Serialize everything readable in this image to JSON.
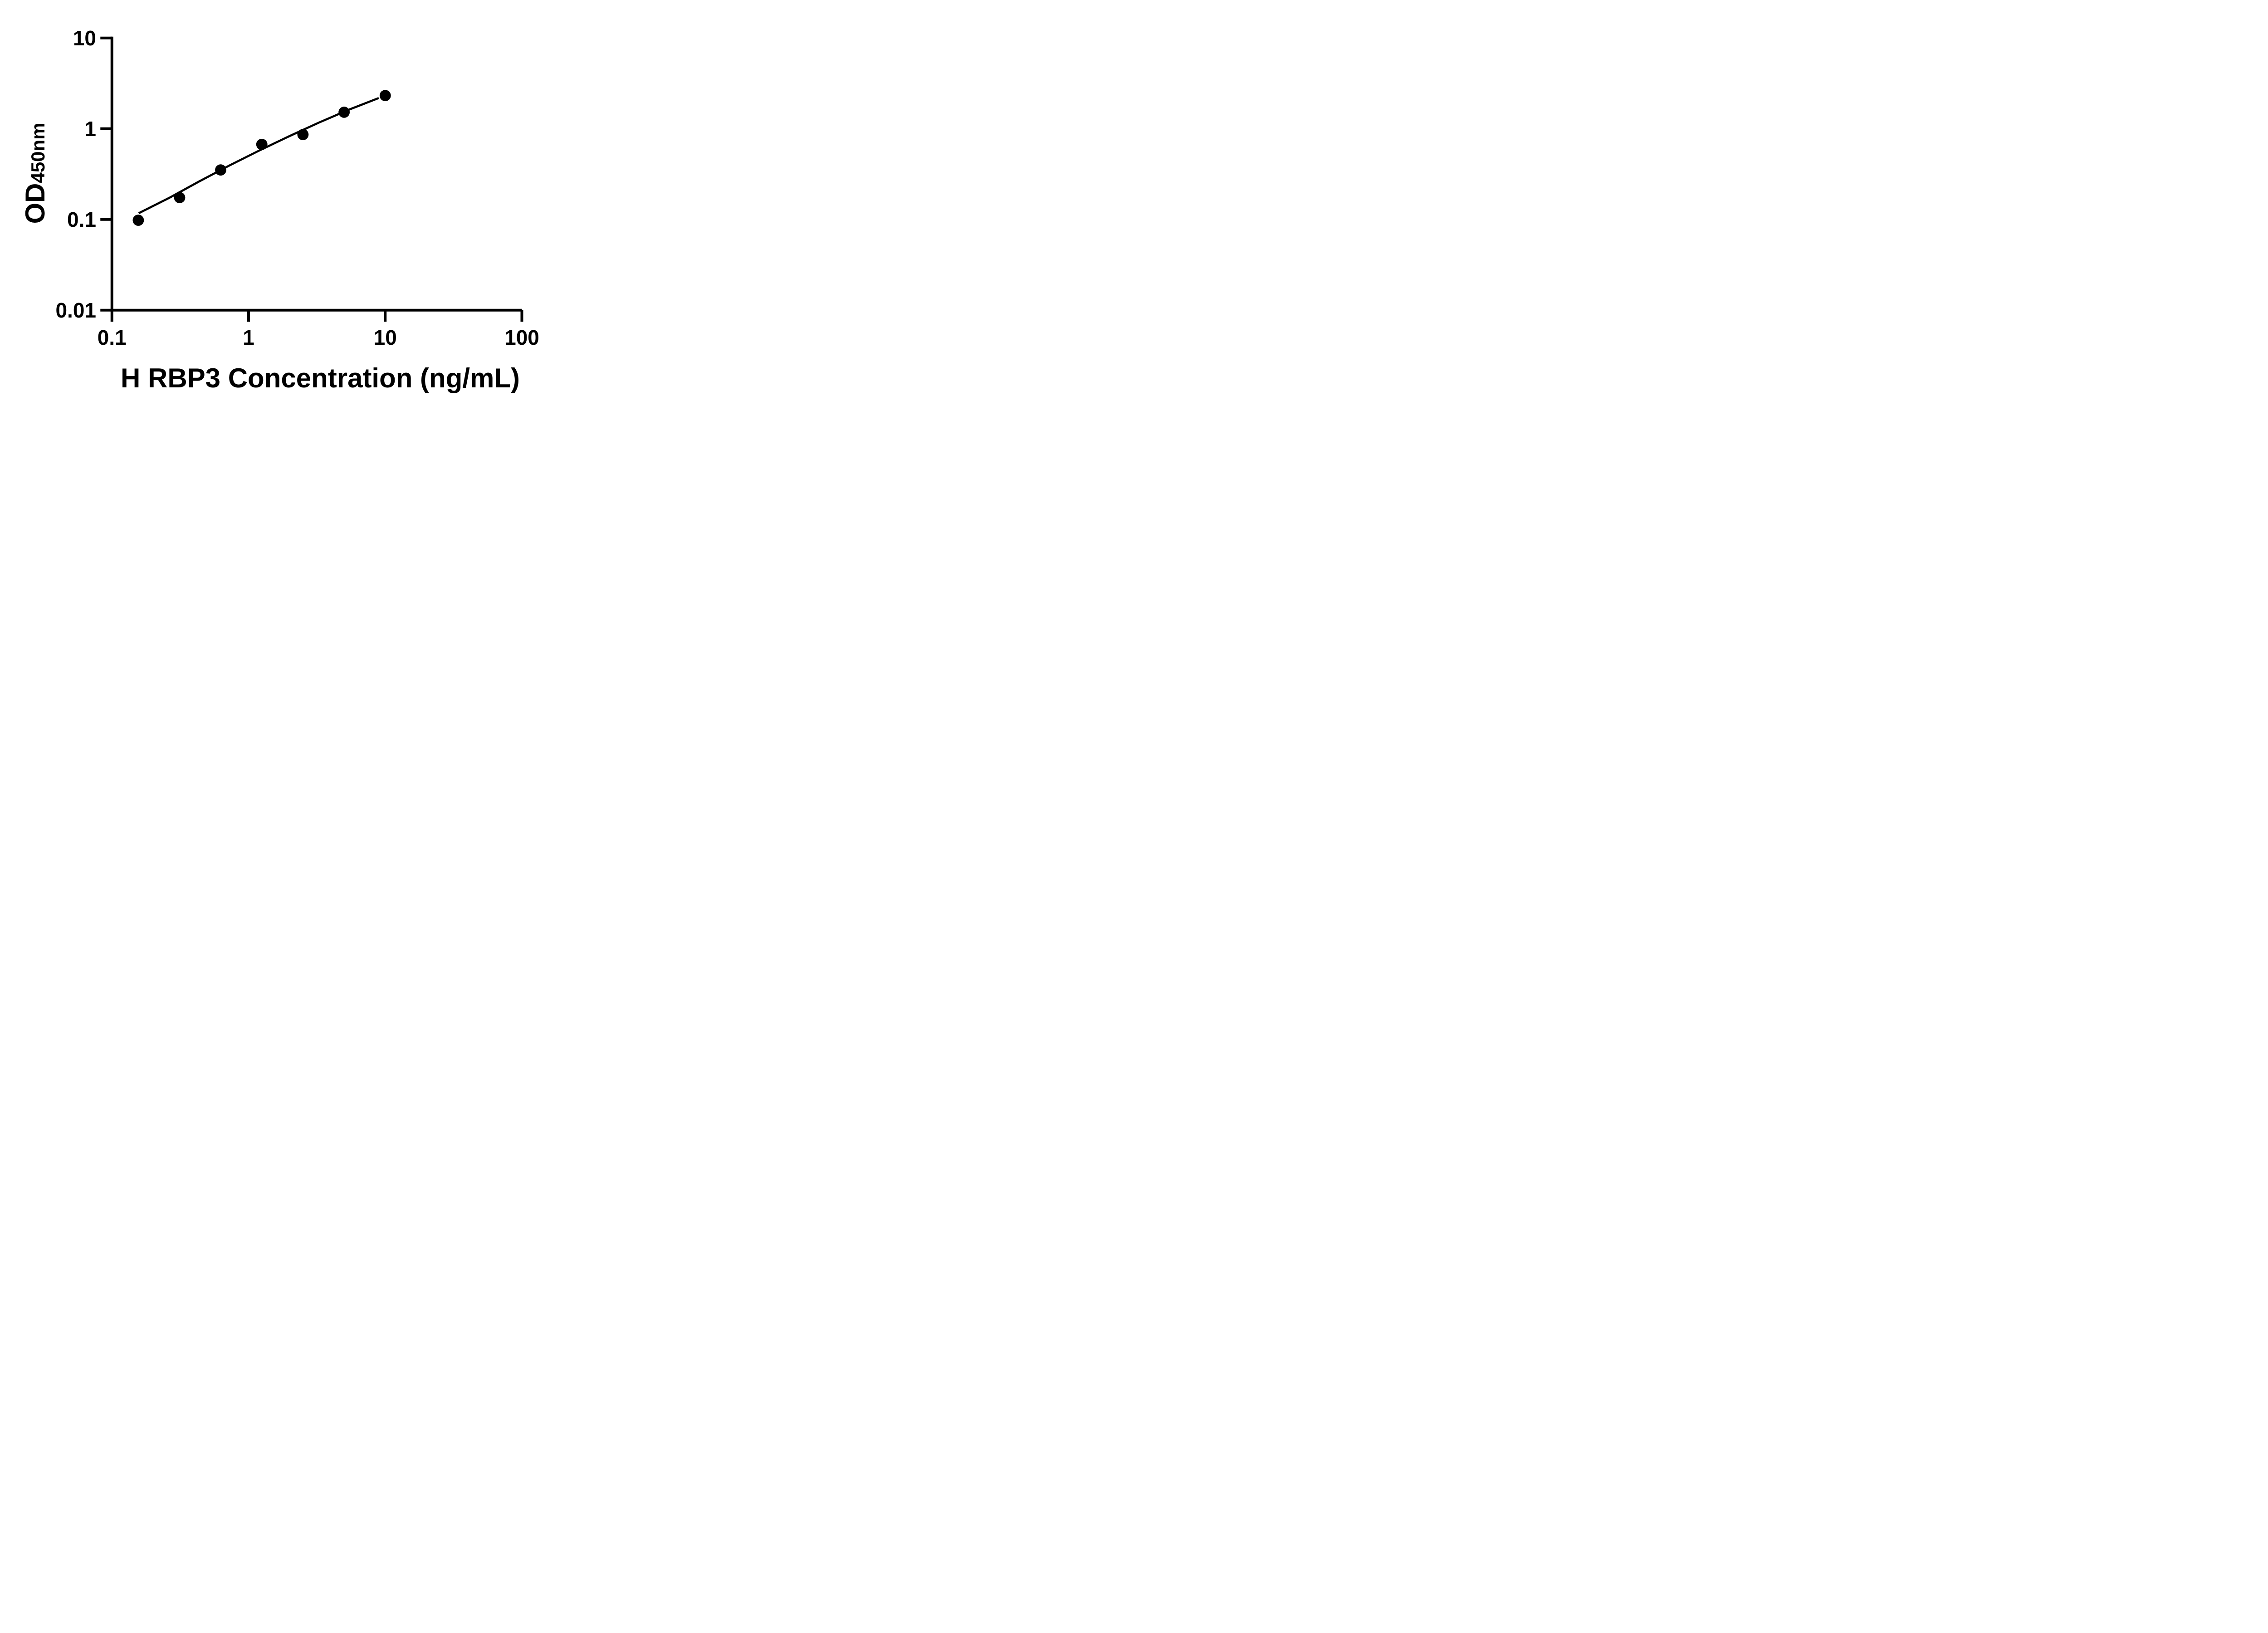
{
  "figure": {
    "background_color": "#ffffff",
    "ink_color": "#000000"
  },
  "chart_data": {
    "type": "scatter",
    "title": "",
    "xlabel": "H RBP3 Concentration (ng/mL)",
    "ylabel_main": "OD",
    "ylabel_subscript": "450nm",
    "x_scale": "log10",
    "y_scale": "log10",
    "xlim": [
      0.1,
      100
    ],
    "ylim": [
      0.01,
      10
    ],
    "x_ticks": [
      0.1,
      1,
      10,
      100
    ],
    "x_tick_labels": [
      "0.1",
      "1",
      "10",
      "100"
    ],
    "y_ticks": [
      0.01,
      0.1,
      1,
      10
    ],
    "y_tick_labels": [
      "0.01",
      "0.1",
      "1",
      "10"
    ],
    "grid": "off",
    "legend": "none",
    "series": [
      {
        "name": "fit-line",
        "type": "line",
        "color": "#000000",
        "x": [
          0.157,
          0.263,
          0.436,
          0.721,
          1.195,
          1.978,
          3.27,
          5.42,
          8.97
        ],
        "y": [
          0.117,
          0.173,
          0.263,
          0.392,
          0.574,
          0.825,
          1.167,
          1.62,
          2.18
        ]
      },
      {
        "name": "standard-points",
        "type": "scatter",
        "marker": "filled-circle",
        "color": "#000000",
        "x": [
          0.156,
          0.313,
          0.625,
          1.25,
          2.5,
          5,
          10
        ],
        "y": [
          0.098,
          0.174,
          0.351,
          0.672,
          0.861,
          1.52,
          2.32
        ]
      }
    ]
  }
}
